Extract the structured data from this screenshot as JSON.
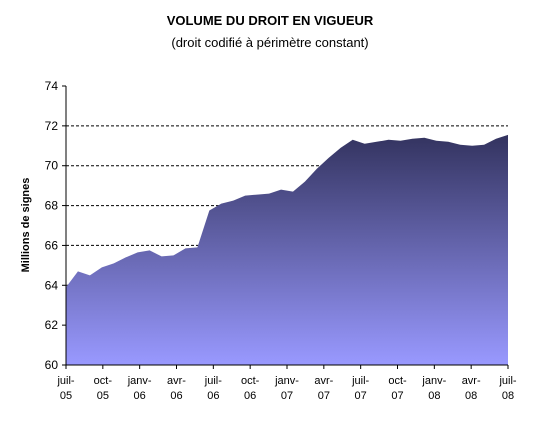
{
  "chart_data": {
    "type": "area",
    "title": "VOLUME DU DROIT EN VIGUEUR",
    "subtitle": "(droit codifié à périmètre constant)",
    "ylabel": "Millions de signes",
    "xlabel": "",
    "ylim": [
      60,
      74
    ],
    "yticks": [
      60,
      62,
      64,
      66,
      68,
      70,
      72,
      74
    ],
    "grid": "horizontal dashed",
    "x_tick_labels": [
      [
        "juil-",
        "05"
      ],
      [
        "oct-",
        "05"
      ],
      [
        "janv-",
        "06"
      ],
      [
        "avr-",
        "06"
      ],
      [
        "juil-",
        "06"
      ],
      [
        "oct-",
        "06"
      ],
      [
        "janv-",
        "07"
      ],
      [
        "avr-",
        "07"
      ],
      [
        "juil-",
        "07"
      ],
      [
        "oct-",
        "07"
      ],
      [
        "janv-",
        "08"
      ],
      [
        "avr-",
        "08"
      ],
      [
        "juil-",
        "08"
      ]
    ],
    "months": [
      "2005-06",
      "2005-07",
      "2005-08",
      "2005-09",
      "2005-10",
      "2005-11",
      "2005-12",
      "2006-01",
      "2006-02",
      "2006-03",
      "2006-04",
      "2006-05",
      "2006-06",
      "2006-07",
      "2006-08",
      "2006-09",
      "2006-10",
      "2006-11",
      "2006-12",
      "2007-01",
      "2007-02",
      "2007-03",
      "2007-04",
      "2007-05",
      "2007-06",
      "2007-07",
      "2007-08",
      "2007-09",
      "2007-10",
      "2007-11",
      "2007-12",
      "2008-01",
      "2008-02",
      "2008-03",
      "2008-04",
      "2008-05",
      "2008-06",
      "2008-07"
    ],
    "values": [
      63.9,
      64.7,
      64.5,
      64.9,
      65.1,
      65.4,
      65.65,
      65.75,
      65.45,
      65.5,
      65.85,
      65.9,
      67.75,
      68.1,
      68.25,
      68.5,
      68.55,
      68.6,
      68.8,
      68.7,
      69.2,
      69.85,
      70.4,
      70.9,
      71.3,
      71.1,
      71.2,
      71.3,
      71.25,
      71.35,
      71.4,
      71.25,
      71.2,
      71.05,
      71.0,
      71.05,
      71.35,
      71.55
    ],
    "colors": {
      "top": "#33335f",
      "bottom": "#9999ff",
      "grid": "#000000"
    }
  }
}
